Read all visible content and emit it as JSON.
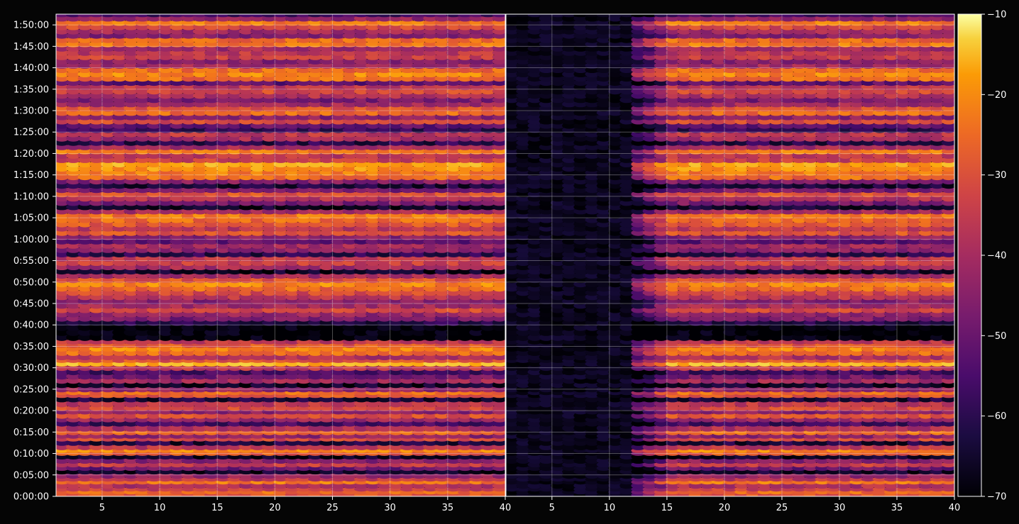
{
  "chart_data": {
    "type": "heatmap",
    "title": "",
    "background": "#050505",
    "colormap": "inferno",
    "grid": true,
    "colorbar": {
      "range": [
        -70,
        -10
      ],
      "ticks": [
        "−10",
        "−20",
        "−30",
        "−40",
        "−50",
        "−60",
        "−70"
      ],
      "tick_values": [
        -10,
        -20,
        -30,
        -40,
        -50,
        -60,
        -70
      ]
    },
    "y_axis": {
      "range_seconds": [
        0,
        6750
      ],
      "tick_labels": [
        "0:00:00",
        "0:05:00",
        "0:10:00",
        "0:15:00",
        "0:20:00",
        "0:25:00",
        "0:30:00",
        "0:35:00",
        "0:40:00",
        "0:45:00",
        "0:50:00",
        "0:55:00",
        "1:00:00",
        "1:05:00",
        "1:10:00",
        "1:15:00",
        "1:20:00",
        "1:25:00",
        "1:30:00",
        "1:35:00",
        "1:40:00",
        "1:45:00",
        "1:50:00"
      ],
      "tick_seconds": [
        0,
        300,
        600,
        900,
        1200,
        1500,
        1800,
        2100,
        2400,
        2700,
        3000,
        3300,
        3600,
        3900,
        4200,
        4500,
        4800,
        5100,
        5400,
        5700,
        6000,
        6300,
        6600
      ]
    },
    "panels": [
      {
        "name": "left",
        "x_range": [
          1,
          40
        ],
        "x_ticks": [
          "5",
          "10",
          "15",
          "20",
          "25",
          "30",
          "35",
          "40"
        ],
        "x_tick_values": [
          5,
          10,
          15,
          20,
          25,
          30,
          35,
          40
        ],
        "onset_channel": 1
      },
      {
        "name": "right",
        "x_range": [
          1,
          40
        ],
        "x_ticks": [
          "5",
          "10",
          "15",
          "20",
          "25",
          "30",
          "35",
          "40"
        ],
        "x_tick_values": [
          5,
          10,
          15,
          20,
          25,
          30,
          35,
          40
        ],
        "onset_channel": 12
      }
    ],
    "channels": 39,
    "band_levels_dB": [
      {
        "t": 0,
        "v": -34
      },
      {
        "t": 40,
        "v": -30
      },
      {
        "t": 80,
        "v": -38
      },
      {
        "t": 120,
        "v": -42
      },
      {
        "t": 180,
        "v": -28
      },
      {
        "t": 220,
        "v": -40
      },
      {
        "t": 260,
        "v": -46
      },
      {
        "t": 320,
        "v": -66
      },
      {
        "t": 370,
        "v": -52
      },
      {
        "t": 420,
        "v": -38
      },
      {
        "t": 470,
        "v": -48
      },
      {
        "t": 530,
        "v": -66
      },
      {
        "t": 580,
        "v": -33
      },
      {
        "t": 620,
        "v": -26
      },
      {
        "t": 660,
        "v": -40
      },
      {
        "t": 720,
        "v": -64
      },
      {
        "t": 780,
        "v": -36
      },
      {
        "t": 820,
        "v": -47
      },
      {
        "t": 870,
        "v": -30
      },
      {
        "t": 920,
        "v": -42
      },
      {
        "t": 990,
        "v": -58
      },
      {
        "t": 1050,
        "v": -45
      },
      {
        "t": 1100,
        "v": -34
      },
      {
        "t": 1160,
        "v": -48
      },
      {
        "t": 1210,
        "v": -36
      },
      {
        "t": 1260,
        "v": -40
      },
      {
        "t": 1330,
        "v": -64
      },
      {
        "t": 1390,
        "v": -34
      },
      {
        "t": 1430,
        "v": -30
      },
      {
        "t": 1470,
        "v": -46
      },
      {
        "t": 1530,
        "v": -66
      },
      {
        "t": 1590,
        "v": -44
      },
      {
        "t": 1650,
        "v": -51
      },
      {
        "t": 1710,
        "v": -58
      },
      {
        "t": 1770,
        "v": -40
      },
      {
        "t": 1830,
        "v": -20
      },
      {
        "t": 1880,
        "v": -34
      },
      {
        "t": 1920,
        "v": -42
      },
      {
        "t": 1980,
        "v": -30
      },
      {
        "t": 2040,
        "v": -26
      },
      {
        "t": 2090,
        "v": -33
      },
      {
        "t": 2140,
        "v": -40
      },
      {
        "t": 2190,
        "v": -70
      },
      {
        "t": 2260,
        "v": -70
      },
      {
        "t": 2330,
        "v": -70
      },
      {
        "t": 2400,
        "v": -62
      },
      {
        "t": 2460,
        "v": -50
      },
      {
        "t": 2520,
        "v": -46
      },
      {
        "t": 2580,
        "v": -36
      },
      {
        "t": 2640,
        "v": -44
      },
      {
        "t": 2700,
        "v": -48
      },
      {
        "t": 2760,
        "v": -40
      },
      {
        "t": 2820,
        "v": -36
      },
      {
        "t": 2880,
        "v": -30
      },
      {
        "t": 2940,
        "v": -26
      },
      {
        "t": 3000,
        "v": -34
      },
      {
        "t": 3060,
        "v": -44
      },
      {
        "t": 3120,
        "v": -66
      },
      {
        "t": 3180,
        "v": -44
      },
      {
        "t": 3240,
        "v": -38
      },
      {
        "t": 3300,
        "v": -40
      },
      {
        "t": 3360,
        "v": -62
      },
      {
        "t": 3420,
        "v": -48
      },
      {
        "t": 3480,
        "v": -44
      },
      {
        "t": 3540,
        "v": -54
      },
      {
        "t": 3600,
        "v": -48
      },
      {
        "t": 3660,
        "v": -34
      },
      {
        "t": 3720,
        "v": -40
      },
      {
        "t": 3780,
        "v": -33
      },
      {
        "t": 3840,
        "v": -30
      },
      {
        "t": 3900,
        "v": -28
      },
      {
        "t": 3960,
        "v": -44
      },
      {
        "t": 4020,
        "v": -66
      },
      {
        "t": 4080,
        "v": -50
      },
      {
        "t": 4140,
        "v": -42
      },
      {
        "t": 4200,
        "v": -34
      },
      {
        "t": 4260,
        "v": -50
      },
      {
        "t": 4320,
        "v": -64
      },
      {
        "t": 4380,
        "v": -48
      },
      {
        "t": 4440,
        "v": -30
      },
      {
        "t": 4500,
        "v": -28
      },
      {
        "t": 4560,
        "v": -24
      },
      {
        "t": 4620,
        "v": -22
      },
      {
        "t": 4680,
        "v": -38
      },
      {
        "t": 4740,
        "v": -40
      },
      {
        "t": 4800,
        "v": -28
      },
      {
        "t": 4860,
        "v": -44
      },
      {
        "t": 4920,
        "v": -62
      },
      {
        "t": 4980,
        "v": -44
      },
      {
        "t": 5040,
        "v": -40
      },
      {
        "t": 5100,
        "v": -60
      },
      {
        "t": 5160,
        "v": -54
      },
      {
        "t": 5220,
        "v": -36
      },
      {
        "t": 5280,
        "v": -48
      },
      {
        "t": 5340,
        "v": -30
      },
      {
        "t": 5400,
        "v": -34
      },
      {
        "t": 5460,
        "v": -44
      },
      {
        "t": 5520,
        "v": -50
      },
      {
        "t": 5580,
        "v": -42
      },
      {
        "t": 5640,
        "v": -36
      },
      {
        "t": 5700,
        "v": -40
      },
      {
        "t": 5760,
        "v": -54
      },
      {
        "t": 5820,
        "v": -30
      },
      {
        "t": 5880,
        "v": -26
      },
      {
        "t": 5940,
        "v": -30
      },
      {
        "t": 6000,
        "v": -44
      },
      {
        "t": 6060,
        "v": -48
      },
      {
        "t": 6120,
        "v": -38
      },
      {
        "t": 6180,
        "v": -40
      },
      {
        "t": 6240,
        "v": -44
      },
      {
        "t": 6300,
        "v": -28
      },
      {
        "t": 6360,
        "v": -30
      },
      {
        "t": 6420,
        "v": -48
      },
      {
        "t": 6480,
        "v": -44
      },
      {
        "t": 6540,
        "v": -36
      },
      {
        "t": 6600,
        "v": -28
      },
      {
        "t": 6660,
        "v": -46
      },
      {
        "t": 6720,
        "v": -58
      }
    ]
  }
}
